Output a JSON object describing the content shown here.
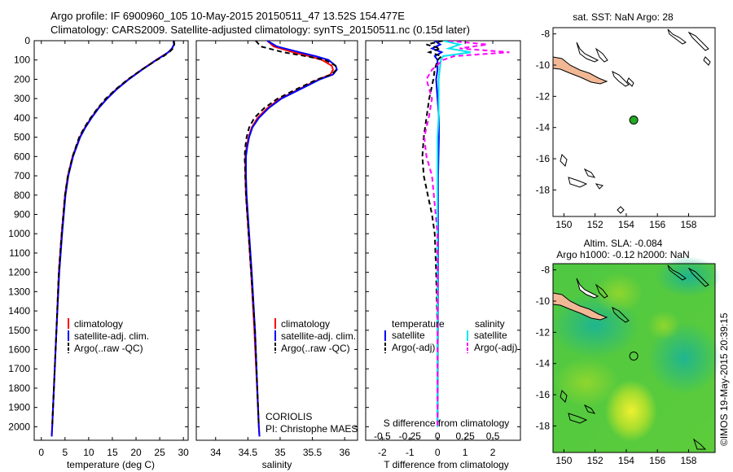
{
  "header": {
    "title_line1": "Argo profile: IF 6900960_105 10-May-2015 20150511_47 13.52S 154.477E",
    "title_line2": "Climatology: CARS2009. Satellite-adjusted climatology: synTS_20150511.nc (0.15d later)"
  },
  "stamp": "©IMOS 19-May-2015 20:39:15",
  "chart_data": [
    {
      "id": "temperature",
      "type": "line",
      "xlabel": "temperature (deg C)",
      "xlim": [
        -1.5,
        31
      ],
      "xticks": [
        0,
        5,
        10,
        15,
        20,
        25,
        30
      ],
      "ylim": [
        2070,
        0
      ],
      "yticks": [
        0,
        100,
        200,
        300,
        400,
        500,
        600,
        700,
        800,
        900,
        1000,
        1100,
        1200,
        1300,
        1400,
        1500,
        1600,
        1700,
        1800,
        1900,
        2000
      ],
      "legend": [
        "climatology",
        "satellite-adj. clim.",
        "Argo(..raw -QC)"
      ],
      "series": [
        {
          "name": "climatology",
          "color": "#ff0000",
          "dash": "",
          "depth": [
            0,
            20,
            40,
            60,
            80,
            100,
            120,
            150,
            200,
            250,
            300,
            350,
            400,
            450,
            500,
            600,
            700,
            800,
            1000,
            1200,
            1500,
            2000,
            2050
          ],
          "values": [
            27.9,
            28,
            27.6,
            26.8,
            25.5,
            24.2,
            23,
            21.2,
            18.4,
            15.9,
            13.8,
            12,
            10.5,
            9.2,
            8.1,
            6.6,
            5.6,
            5,
            4.3,
            3.7,
            3.2,
            2.3,
            2.2
          ]
        },
        {
          "name": "satellite-adj. clim.",
          "color": "#0000ff",
          "dash": "",
          "depth": [
            0,
            20,
            40,
            60,
            80,
            100,
            120,
            150,
            200,
            250,
            300,
            350,
            400,
            450,
            500,
            600,
            700,
            800,
            1000,
            1200,
            1500,
            2000,
            2050
          ],
          "values": [
            27.9,
            28,
            27.6,
            26.8,
            25.6,
            24.3,
            23.1,
            21.3,
            18.5,
            16,
            13.9,
            12.1,
            10.6,
            9.3,
            8.2,
            6.7,
            5.7,
            5.1,
            4.4,
            3.8,
            3.2,
            2.3,
            2.2
          ]
        },
        {
          "name": "Argo(..raw -QC)",
          "color": "#000000",
          "dash": "6,4",
          "depth": [
            0,
            20,
            40,
            60,
            80,
            100,
            120,
            150,
            200,
            250,
            300,
            350,
            400,
            450,
            500,
            600,
            700,
            800,
            1000,
            1200,
            1500,
            2000
          ],
          "values": [
            28,
            28.1,
            27.8,
            27,
            25.8,
            24.4,
            23.1,
            21.2,
            18.3,
            15.8,
            13.6,
            11.9,
            10.4,
            9.1,
            8,
            6.6,
            5.6,
            5,
            4.3,
            3.7,
            3.2,
            2.3
          ]
        }
      ]
    },
    {
      "id": "salinity",
      "type": "line",
      "xlabel": "salinity",
      "xlim": [
        33.7,
        36.2
      ],
      "xticks": [
        34,
        34.5,
        35,
        35.5,
        36
      ],
      "xticklabels": [
        "34",
        "34.5",
        "35",
        "35.5",
        "36"
      ],
      "ylim": [
        2070,
        0
      ],
      "legend": [
        "climatology",
        "satellite-adj. clim.",
        "Argo(..raw -QC)"
      ],
      "annotation": [
        "CORIOLIS",
        "PI: Christophe MAES"
      ],
      "series": [
        {
          "name": "climatology",
          "color": "#ff0000",
          "dash": "",
          "depth": [
            0,
            30,
            60,
            80,
            100,
            130,
            150,
            175,
            200,
            250,
            300,
            350,
            400,
            450,
            500,
            550,
            600,
            700,
            800,
            1000,
            1200,
            1500,
            2000,
            2050
          ],
          "values": [
            34.8,
            34.9,
            35.2,
            35.45,
            35.65,
            35.8,
            35.82,
            35.78,
            35.6,
            35.3,
            35.0,
            34.8,
            34.65,
            34.56,
            34.51,
            34.48,
            34.46,
            34.46,
            34.47,
            34.51,
            34.55,
            34.6,
            34.67,
            34.68
          ]
        },
        {
          "name": "satellite-adj. clim.",
          "color": "#0000ff",
          "dash": "",
          "depth": [
            0,
            30,
            60,
            80,
            100,
            130,
            150,
            175,
            200,
            250,
            300,
            350,
            400,
            450,
            500,
            550,
            600,
            700,
            800,
            1000,
            1200,
            1500,
            2000,
            2050
          ],
          "values": [
            34.8,
            34.95,
            35.3,
            35.55,
            35.75,
            35.86,
            35.88,
            35.82,
            35.62,
            35.32,
            35.02,
            34.82,
            34.67,
            34.57,
            34.52,
            34.49,
            34.47,
            34.47,
            34.48,
            34.52,
            34.56,
            34.61,
            34.67,
            34.68
          ]
        },
        {
          "name": "Argo(..raw -QC)",
          "color": "#000000",
          "dash": "6,4",
          "depth": [
            0,
            30,
            60,
            80,
            100,
            130,
            150,
            175,
            200,
            250,
            300,
            350,
            400,
            450,
            500,
            550,
            600,
            700,
            800,
            1000,
            1200,
            1500,
            2000
          ],
          "values": [
            34.62,
            34.7,
            35.05,
            35.4,
            35.7,
            35.86,
            35.87,
            35.8,
            35.58,
            35.26,
            34.96,
            34.75,
            34.6,
            34.52,
            34.48,
            34.46,
            34.45,
            34.46,
            34.47,
            34.51,
            34.55,
            34.61,
            34.67
          ]
        }
      ]
    },
    {
      "id": "difference",
      "type": "line",
      "xlabel_bottom": "T difference from climatology",
      "xlabel_top": "S difference from climatology",
      "xlim": [
        -2.6,
        3
      ],
      "xticks": [
        -2,
        -1,
        0,
        1,
        2
      ],
      "sticks": [
        -0.5,
        -0.25,
        0,
        0.25,
        0.5
      ],
      "sticklabels": [
        "-0.5",
        "-0.25",
        "0",
        "0.25",
        "0.5"
      ],
      "ylim": [
        2070,
        0
      ],
      "legend_headers": [
        "temperature",
        "salinity"
      ],
      "legend": [
        "satellite",
        "Argo(-adj)",
        "satellite",
        "Argo(-adj)"
      ],
      "series": [
        {
          "name": "satellite",
          "group": "temperature",
          "color": "#0000ff",
          "dash": "",
          "depth": [
            0,
            20,
            40,
            60,
            80,
            100,
            150,
            200,
            300,
            400,
            500,
            700,
            1000,
            1500,
            2000
          ],
          "values": [
            -0.1,
            0.1,
            -0.2,
            0.15,
            -0.1,
            0,
            0,
            -0.05,
            0,
            0.05,
            0.05,
            0.02,
            0.02,
            0.01,
            0
          ]
        },
        {
          "name": "Argo(-adj)",
          "group": "temperature",
          "color": "#000000",
          "dash": "6,4",
          "depth": [
            0,
            20,
            40,
            60,
            80,
            100,
            150,
            200,
            300,
            400,
            500,
            600,
            700,
            800,
            900,
            1000,
            1200,
            1500,
            2000
          ],
          "values": [
            0.2,
            -0.4,
            0.1,
            -0.3,
            0.15,
            0,
            -0.1,
            -0.15,
            -0.3,
            -0.4,
            -0.5,
            -0.55,
            -0.5,
            -0.35,
            -0.2,
            -0.1,
            -0.05,
            0,
            0
          ]
        },
        {
          "name": "satellite",
          "group": "salinity",
          "color": "#00e5ee",
          "dash": "",
          "depth": [
            0,
            20,
            40,
            60,
            80,
            100,
            150,
            200,
            300,
            400,
            500,
            700,
            1000,
            1500,
            2000
          ],
          "values": [
            0.05,
            0.2,
            0.1,
            0.3,
            0.05,
            0.03,
            0.02,
            0.01,
            0.01,
            0.01,
            0,
            0,
            0,
            0,
            0
          ]
        },
        {
          "name": "Argo(-adj)",
          "group": "salinity",
          "color": "#ff00ff",
          "dash": "6,4",
          "depth": [
            0,
            20,
            40,
            60,
            80,
            100,
            150,
            200,
            300,
            400,
            500,
            600,
            700,
            1000,
            1500,
            2000
          ],
          "values": [
            0.1,
            0.45,
            0.2,
            0.65,
            0.15,
            0.05,
            -0.05,
            -0.1,
            -0.05,
            -0.08,
            -0.12,
            -0.1,
            -0.05,
            0,
            0,
            0
          ]
        }
      ]
    },
    {
      "id": "map_sst",
      "type": "map",
      "title": "sat. SST: NaN Argo: 28",
      "xticks": [
        150,
        152,
        154,
        156,
        158
      ],
      "yticks": [
        -8,
        -10,
        -12,
        -14,
        -16,
        -18
      ],
      "lonlim": [
        149.3,
        159.7
      ],
      "latlim": [
        -19.7,
        -7.6
      ],
      "marker": {
        "lon": 154.48,
        "lat": -13.52,
        "fill": "#22aa22"
      }
    },
    {
      "id": "map_sla",
      "type": "map",
      "title_line1": "Altim. SLA: -0.084",
      "title_line2": "Argo h1000: -0.12 h2000: NaN",
      "xticks": [
        150,
        152,
        154,
        156,
        158
      ],
      "yticks": [
        -8,
        -10,
        -12,
        -14,
        -16,
        -18
      ],
      "lonlim": [
        149.3,
        159.7
      ],
      "latlim": [
        -19.7,
        -7.6
      ],
      "marker": {
        "lon": 154.48,
        "lat": -13.52,
        "fill": "none"
      }
    }
  ]
}
